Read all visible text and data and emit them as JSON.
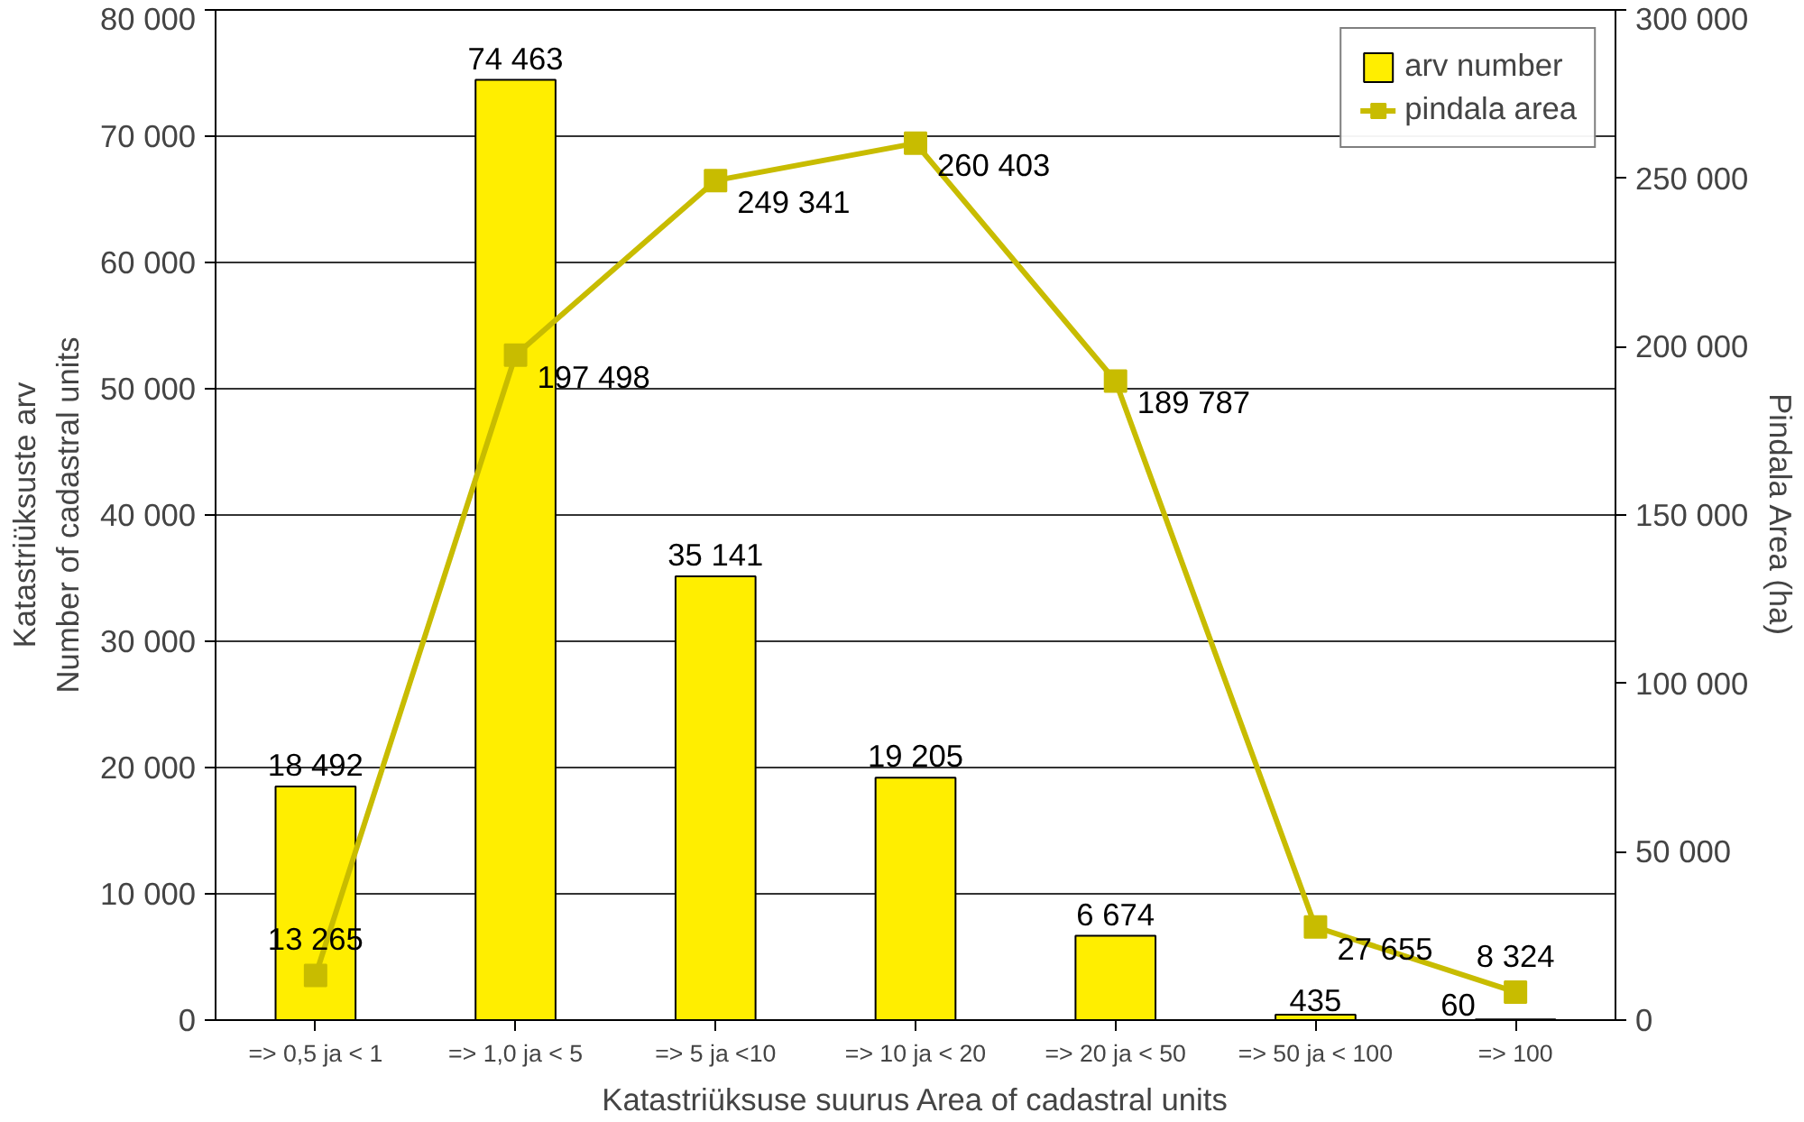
{
  "chart_data": {
    "type": "bar",
    "xlabel": "Katastriüksuse suurus Area of cadastral units",
    "ylabel": "Katastriüksuste arv\nNumber of cadastral units",
    "y2label": "Pindala Area (ha)",
    "categories": [
      "=> 0,5 ja < 1",
      "=> 1,0 ja < 5",
      "=> 5 ja <10",
      "=> 10 ja < 20",
      "=> 20 ja < 50",
      "=> 50 ja < 100",
      "=> 100"
    ],
    "series": [
      {
        "name": "arv number",
        "color": "#ffee00",
        "values": [
          18492,
          74463,
          35141,
          19205,
          6674,
          435,
          60
        ],
        "value_labels": [
          "18 492",
          "74 463",
          "35 141",
          "19 205",
          "6 674",
          "435",
          "60"
        ]
      },
      {
        "name": "pindala area",
        "type": "line",
        "axis": "y2",
        "color": "#c8bc00",
        "marker": "square",
        "values": [
          13265,
          197498,
          249341,
          260403,
          189787,
          27655,
          8324
        ],
        "value_labels": [
          "13 265",
          "197 498",
          "249 341",
          "260 403",
          "189 787",
          "27 655",
          "8 324"
        ]
      }
    ],
    "ylim": [
      0,
      80000
    ],
    "yticks": [
      0,
      {
        "value": 10000,
        "label": "10 000"
      },
      {
        "value": 20000,
        "label": "20 000"
      },
      {
        "value": 30000,
        "label": "30 000"
      },
      {
        "value": 40000,
        "label": "40 000"
      },
      {
        "value": 50000,
        "label": "50 000"
      },
      {
        "value": 60000,
        "label": "60 000"
      },
      {
        "value": 70000,
        "label": "70 000"
      },
      {
        "value": 80000,
        "label": "80 000"
      }
    ],
    "y2lim": [
      0,
      300000
    ],
    "y2ticks": [
      0,
      {
        "value": 50000,
        "label": "50 000"
      },
      {
        "value": 100000,
        "label": "100 000"
      },
      {
        "value": 150000,
        "label": "150 000"
      },
      {
        "value": 200000,
        "label": "200 000"
      },
      {
        "value": 250000,
        "label": "250 000"
      },
      {
        "value": 300000,
        "label": "300 000"
      }
    ],
    "grid": "y",
    "legend": "top right"
  }
}
